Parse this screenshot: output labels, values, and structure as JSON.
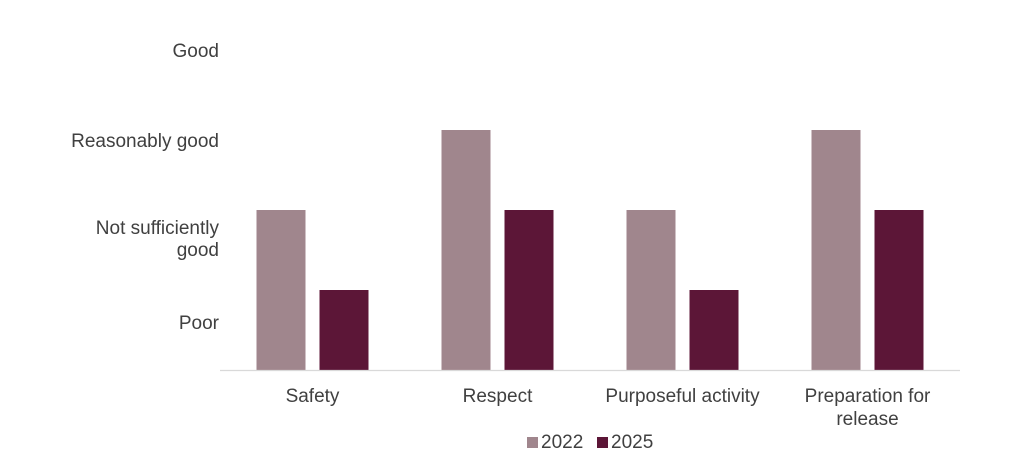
{
  "chart_data": {
    "type": "bar",
    "categories": [
      "Safety",
      "Respect",
      "Purposeful activity",
      "Preparation for release"
    ],
    "y_categories": [
      "Poor",
      "Not sufficiently good",
      "Reasonably good",
      "Good"
    ],
    "series": [
      {
        "name": "2022",
        "values": [
          2,
          3,
          2,
          3
        ],
        "color": "#a0868d"
      },
      {
        "name": "2025",
        "values": [
          1,
          2,
          1,
          2
        ],
        "color": "#5c1637"
      }
    ],
    "ylim": [
      0,
      4
    ],
    "grid": false,
    "legend_position": "bottom"
  }
}
